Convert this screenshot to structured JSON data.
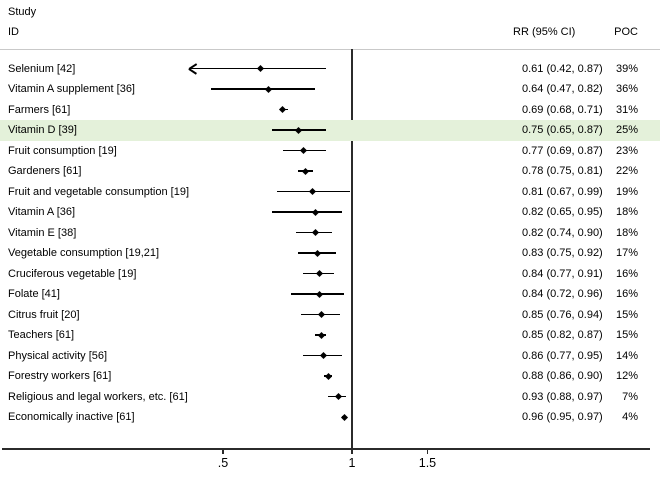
{
  "header": {
    "study_line1": "Study",
    "study_line2": "ID",
    "rr_col": "RR (95% CI)",
    "poc_col": "POC"
  },
  "colors": {
    "highlight": "#e4f1da",
    "ci_line": "#000000",
    "marker": "#000000",
    "ref_line": "#2b2b2b",
    "axis_line": "#2b2b2b",
    "header_rule": "#c9c9c9",
    "text": "#000000"
  },
  "axis": {
    "scale": "log",
    "ref_value": 1,
    "ticks": [
      {
        "label": ".5",
        "value": 0.5
      },
      {
        "label": "1",
        "value": 1
      },
      {
        "label": "1.5",
        "value": 1.5
      }
    ]
  },
  "chart_data": {
    "type": "forest",
    "title": "",
    "columns": [
      "Study ID",
      "RR (95% CI)",
      "POC"
    ],
    "x_scale": "log",
    "xlim": [
      0.15,
      5
    ],
    "grid": false,
    "studies": [
      {
        "label": "Selenium [42]",
        "rr": 0.61,
        "ci_low": 0.42,
        "ci_high": 0.87,
        "rr_text": "0.61 (0.42, 0.87)",
        "poc": "39%",
        "arrow_low": true,
        "highlight": false
      },
      {
        "label": "Vitamin A supplement [36]",
        "rr": 0.64,
        "ci_low": 0.47,
        "ci_high": 0.82,
        "rr_text": "0.64 (0.47, 0.82)",
        "poc": "36%",
        "arrow_low": false,
        "highlight": false
      },
      {
        "label": "Farmers [61]",
        "rr": 0.69,
        "ci_low": 0.68,
        "ci_high": 0.71,
        "rr_text": "0.69 (0.68, 0.71)",
        "poc": "31%",
        "arrow_low": false,
        "highlight": false
      },
      {
        "label": "Vitamin D [39]",
        "rr": 0.75,
        "ci_low": 0.65,
        "ci_high": 0.87,
        "rr_text": "0.75 (0.65, 0.87)",
        "poc": "25%",
        "arrow_low": false,
        "highlight": true
      },
      {
        "label": "Fruit consumption [19]",
        "rr": 0.77,
        "ci_low": 0.69,
        "ci_high": 0.87,
        "rr_text": "0.77 (0.69, 0.87)",
        "poc": "23%",
        "arrow_low": false,
        "highlight": false
      },
      {
        "label": "Gardeners [61]",
        "rr": 0.78,
        "ci_low": 0.75,
        "ci_high": 0.81,
        "rr_text": "0.78 (0.75, 0.81)",
        "poc": "22%",
        "arrow_low": false,
        "highlight": false
      },
      {
        "label": "Fruit and vegetable consumption [19]",
        "rr": 0.81,
        "ci_low": 0.67,
        "ci_high": 0.99,
        "rr_text": "0.81 (0.67, 0.99)",
        "poc": "19%",
        "arrow_low": false,
        "highlight": false
      },
      {
        "label": "Vitamin A [36]",
        "rr": 0.82,
        "ci_low": 0.65,
        "ci_high": 0.95,
        "rr_text": "0.82 (0.65, 0.95)",
        "poc": "18%",
        "arrow_low": false,
        "highlight": false
      },
      {
        "label": "Vitamin E [38]",
        "rr": 0.82,
        "ci_low": 0.74,
        "ci_high": 0.9,
        "rr_text": "0.82 (0.74, 0.90)",
        "poc": "18%",
        "arrow_low": false,
        "highlight": false
      },
      {
        "label": "Vegetable consumption [19,21]",
        "rr": 0.83,
        "ci_low": 0.75,
        "ci_high": 0.92,
        "rr_text": "0.83 (0.75, 0.92)",
        "poc": "17%",
        "arrow_low": false,
        "highlight": false
      },
      {
        "label": "Cruciferous vegetable [19]",
        "rr": 0.84,
        "ci_low": 0.77,
        "ci_high": 0.91,
        "rr_text": "0.84 (0.77, 0.91)",
        "poc": "16%",
        "arrow_low": false,
        "highlight": false
      },
      {
        "label": "Folate [41]",
        "rr": 0.84,
        "ci_low": 0.72,
        "ci_high": 0.96,
        "rr_text": "0.84 (0.72, 0.96)",
        "poc": "16%",
        "arrow_low": false,
        "highlight": false
      },
      {
        "label": "Citrus fruit [20]",
        "rr": 0.85,
        "ci_low": 0.76,
        "ci_high": 0.94,
        "rr_text": "0.85 (0.76, 0.94)",
        "poc": "15%",
        "arrow_low": false,
        "highlight": false
      },
      {
        "label": "Teachers [61]",
        "rr": 0.85,
        "ci_low": 0.82,
        "ci_high": 0.87,
        "rr_text": "0.85 (0.82, 0.87)",
        "poc": "15%",
        "arrow_low": false,
        "highlight": false
      },
      {
        "label": "Physical activity [56]",
        "rr": 0.86,
        "ci_low": 0.77,
        "ci_high": 0.95,
        "rr_text": "0.86 (0.77, 0.95)",
        "poc": "14%",
        "arrow_low": false,
        "highlight": false
      },
      {
        "label": "Forestry workers [61]",
        "rr": 0.88,
        "ci_low": 0.86,
        "ci_high": 0.9,
        "rr_text": "0.88 (0.86, 0.90)",
        "poc": "12%",
        "arrow_low": false,
        "highlight": false
      },
      {
        "label": "Religious and legal workers, etc. [61]",
        "rr": 0.93,
        "ci_low": 0.88,
        "ci_high": 0.97,
        "rr_text": "0.93 (0.88, 0.97)",
        "poc": "7%",
        "arrow_low": false,
        "highlight": false
      },
      {
        "label": "Economically inactive [61]",
        "rr": 0.96,
        "ci_low": 0.95,
        "ci_high": 0.97,
        "rr_text": "0.96 (0.95, 0.97)",
        "poc": "4%",
        "arrow_low": false,
        "highlight": false
      }
    ]
  }
}
